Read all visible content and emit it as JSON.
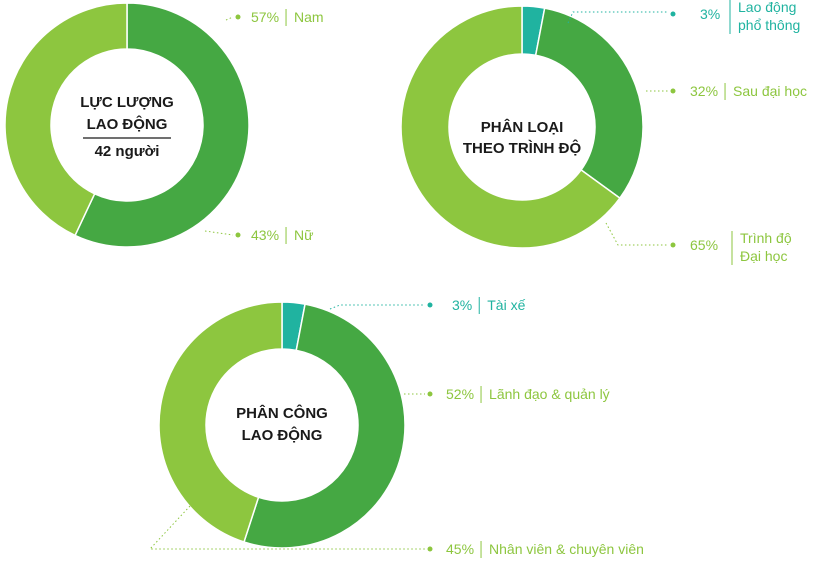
{
  "colors": {
    "light_green": "#8dc63f",
    "dark_green": "#45a843",
    "teal": "#20b3a0",
    "label_green": "#8dc63f",
    "label_teal": "#20b3a0"
  },
  "chart_data": [
    {
      "type": "pie",
      "variant": "donut",
      "center_title": [
        "LỰC LƯỢNG",
        "LAO ĐỘNG"
      ],
      "center_subtitle": "42 người",
      "slices": [
        {
          "percent_label": "57%",
          "name_lines": [
            "Nam"
          ],
          "value": 57,
          "color": "dark_green",
          "label_color": "label_green"
        },
        {
          "percent_label": "43%",
          "name_lines": [
            "Nữ"
          ],
          "value": 43,
          "color": "light_green",
          "label_color": "label_green"
        }
      ]
    },
    {
      "type": "pie",
      "variant": "donut",
      "center_title": [
        "PHÂN LOẠI",
        "THEO TRÌNH ĐỘ"
      ],
      "slices": [
        {
          "percent_label": "3%",
          "name_lines": [
            "Lao động",
            "phổ thông"
          ],
          "value": 3,
          "color": "teal",
          "label_color": "label_teal"
        },
        {
          "percent_label": "32%",
          "name_lines": [
            "Sau đại học"
          ],
          "value": 32,
          "color": "dark_green",
          "label_color": "label_green"
        },
        {
          "percent_label": "65%",
          "name_lines": [
            "Trình độ",
            "Đại học"
          ],
          "value": 65,
          "color": "light_green",
          "label_color": "label_green"
        }
      ]
    },
    {
      "type": "pie",
      "variant": "donut",
      "center_title": [
        "PHÂN CÔNG",
        "LAO ĐỘNG"
      ],
      "slices": [
        {
          "percent_label": "3%",
          "name_lines": [
            "Tài xế"
          ],
          "value": 3,
          "color": "teal",
          "label_color": "label_teal"
        },
        {
          "percent_label": "52%",
          "name_lines": [
            "Lãnh đạo & quản lý"
          ],
          "value": 52,
          "color": "dark_green",
          "label_color": "label_green"
        },
        {
          "percent_label": "45%",
          "name_lines": [
            "Nhân viên & chuyên viên"
          ],
          "value": 45,
          "color": "light_green",
          "label_color": "label_green"
        }
      ]
    }
  ]
}
